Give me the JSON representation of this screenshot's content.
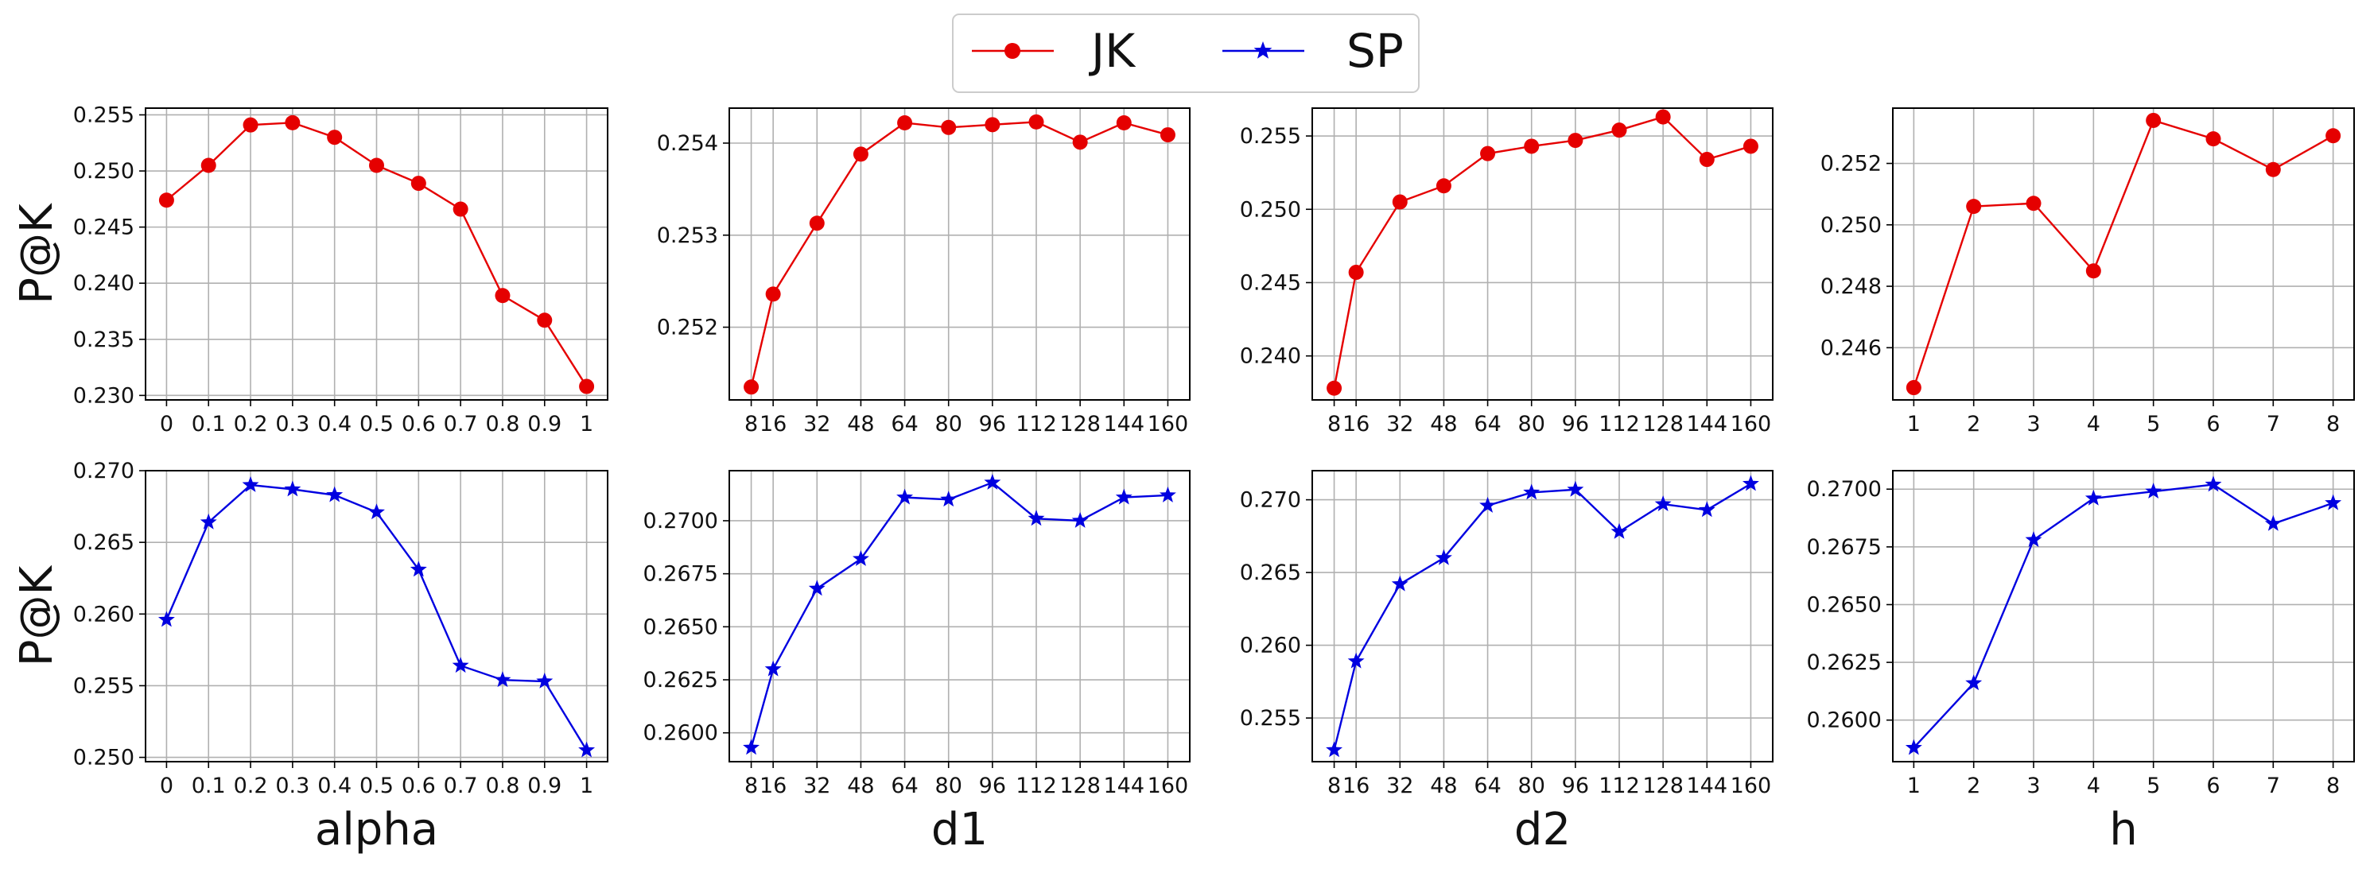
{
  "legend": {
    "entries": [
      {
        "label": "JK",
        "color": "#e50000",
        "marker": "circle"
      },
      {
        "label": "SP",
        "color": "#0000e0",
        "marker": "star"
      }
    ]
  },
  "chart_data": [
    {
      "id": "alpha-jk",
      "type": "line",
      "series_name": "JK",
      "color": "#e50000",
      "marker": "circle",
      "x_tick_labels": [
        "0",
        "0.1",
        "0.2",
        "0.3",
        "0.4",
        "0.5",
        "0.6",
        "0.7",
        "0.8",
        "0.9",
        "1"
      ],
      "x": [
        0,
        0.1,
        0.2,
        0.3,
        0.4,
        0.5,
        0.6,
        0.7,
        0.8,
        0.9,
        1
      ],
      "values": [
        0.2474,
        0.2505,
        0.2541,
        0.2543,
        0.253,
        0.2505,
        0.2489,
        0.2466,
        0.2389,
        0.2367,
        0.2308
      ],
      "xlim": [
        -0.05,
        1.05
      ],
      "ylim": [
        0.2296,
        0.2556
      ],
      "y_ticks": [
        0.23,
        0.235,
        0.24,
        0.245,
        0.25,
        0.255
      ],
      "y_tick_labels": [
        "0.230",
        "0.235",
        "0.240",
        "0.245",
        "0.250",
        "0.255"
      ],
      "ylabel": "P@K",
      "xlabel": "",
      "grid": true
    },
    {
      "id": "d1-jk",
      "type": "line",
      "series_name": "JK",
      "color": "#e50000",
      "marker": "circle",
      "x_tick_labels": [
        "8",
        "16",
        "32",
        "48",
        "64",
        "80",
        "96",
        "112",
        "128",
        "144",
        "160"
      ],
      "x": [
        8,
        16,
        32,
        48,
        64,
        80,
        96,
        112,
        128,
        144,
        160
      ],
      "values": [
        0.25135,
        0.25236,
        0.25313,
        0.25388,
        0.25422,
        0.25417,
        0.2542,
        0.25423,
        0.25401,
        0.25422,
        0.25409
      ],
      "xlim": [
        0,
        168
      ],
      "ylim": [
        0.25121,
        0.25438
      ],
      "y_ticks": [
        0.252,
        0.253,
        0.254
      ],
      "y_tick_labels": [
        "0.252",
        "0.253",
        "0.254"
      ],
      "ylabel": "",
      "xlabel": "",
      "grid": true
    },
    {
      "id": "d2-jk",
      "type": "line",
      "series_name": "JK",
      "color": "#e50000",
      "marker": "circle",
      "x_tick_labels": [
        "8",
        "16",
        "32",
        "48",
        "64",
        "80",
        "96",
        "112",
        "128",
        "144",
        "160"
      ],
      "x": [
        8,
        16,
        32,
        48,
        64,
        80,
        96,
        112,
        128,
        144,
        160
      ],
      "values": [
        0.2378,
        0.2457,
        0.2505,
        0.2516,
        0.2538,
        0.2543,
        0.2547,
        0.2554,
        0.2563,
        0.2534,
        0.2543
      ],
      "xlim": [
        0,
        168
      ],
      "ylim": [
        0.237,
        0.2569
      ],
      "y_ticks": [
        0.24,
        0.245,
        0.25,
        0.255
      ],
      "y_tick_labels": [
        "0.240",
        "0.245",
        "0.250",
        "0.255"
      ],
      "ylabel": "",
      "xlabel": "",
      "grid": true
    },
    {
      "id": "h-jk",
      "type": "line",
      "series_name": "JK",
      "color": "#e50000",
      "marker": "circle",
      "x_tick_labels": [
        "1",
        "2",
        "3",
        "4",
        "5",
        "6",
        "7",
        "8"
      ],
      "x": [
        1,
        2,
        3,
        4,
        5,
        6,
        7,
        8
      ],
      "values": [
        0.2447,
        0.2506,
        0.2507,
        0.2485,
        0.2534,
        0.2528,
        0.2518,
        0.2529
      ],
      "xlim": [
        0.65,
        8.35
      ],
      "ylim": [
        0.2443,
        0.2538
      ],
      "y_ticks": [
        0.246,
        0.248,
        0.25,
        0.252
      ],
      "y_tick_labels": [
        "0.246",
        "0.248",
        "0.250",
        "0.252"
      ],
      "ylabel": "",
      "xlabel": "",
      "grid": true
    },
    {
      "id": "alpha-sp",
      "type": "line",
      "series_name": "SP",
      "color": "#0000e0",
      "marker": "star",
      "x_tick_labels": [
        "0",
        "0.1",
        "0.2",
        "0.3",
        "0.4",
        "0.5",
        "0.6",
        "0.7",
        "0.8",
        "0.9",
        "1"
      ],
      "x": [
        0,
        0.1,
        0.2,
        0.3,
        0.4,
        0.5,
        0.6,
        0.7,
        0.8,
        0.9,
        1
      ],
      "values": [
        0.2596,
        0.2664,
        0.269,
        0.2687,
        0.2683,
        0.2671,
        0.2631,
        0.2564,
        0.2554,
        0.2553,
        0.2505
      ],
      "xlim": [
        -0.05,
        1.05
      ],
      "ylim": [
        0.2497,
        0.27
      ],
      "y_ticks": [
        0.25,
        0.255,
        0.26,
        0.265,
        0.27
      ],
      "y_tick_labels": [
        "0.250",
        "0.255",
        "0.260",
        "0.265",
        "0.270"
      ],
      "ylabel": "P@K",
      "xlabel": "alpha",
      "grid": true
    },
    {
      "id": "d1-sp",
      "type": "line",
      "series_name": "SP",
      "color": "#0000e0",
      "marker": "star",
      "x_tick_labels": [
        "8",
        "16",
        "32",
        "48",
        "64",
        "80",
        "96",
        "112",
        "128",
        "144",
        "160"
      ],
      "x": [
        8,
        16,
        32,
        48,
        64,
        80,
        96,
        112,
        128,
        144,
        160
      ],
      "values": [
        0.2593,
        0.263,
        0.2668,
        0.2682,
        0.2711,
        0.271,
        0.2718,
        0.2701,
        0.27,
        0.2711,
        0.2712
      ],
      "xlim": [
        0,
        168
      ],
      "ylim": [
        0.25864,
        0.27236
      ],
      "y_ticks": [
        0.26,
        0.2625,
        0.265,
        0.2675,
        0.27
      ],
      "y_tick_labels": [
        "0.2600",
        "0.2625",
        "0.2650",
        "0.2675",
        "0.2700"
      ],
      "ylabel": "",
      "xlabel": "d1",
      "grid": true
    },
    {
      "id": "d2-sp",
      "type": "line",
      "series_name": "SP",
      "color": "#0000e0",
      "marker": "star",
      "x_tick_labels": [
        "8",
        "16",
        "32",
        "48",
        "64",
        "80",
        "96",
        "112",
        "128",
        "144",
        "160"
      ],
      "x": [
        8,
        16,
        32,
        48,
        64,
        80,
        96,
        112,
        128,
        144,
        160
      ],
      "values": [
        0.2528,
        0.2589,
        0.2642,
        0.266,
        0.2696,
        0.2705,
        0.2707,
        0.2678,
        0.2697,
        0.2693,
        0.2711
      ],
      "xlim": [
        0,
        168
      ],
      "ylim": [
        0.252,
        0.272
      ],
      "y_ticks": [
        0.255,
        0.26,
        0.265,
        0.27
      ],
      "y_tick_labels": [
        "0.255",
        "0.260",
        "0.265",
        "0.270"
      ],
      "ylabel": "",
      "xlabel": "d2",
      "grid": true
    },
    {
      "id": "h-sp",
      "type": "line",
      "series_name": "SP",
      "color": "#0000e0",
      "marker": "star",
      "x_tick_labels": [
        "1",
        "2",
        "3",
        "4",
        "5",
        "6",
        "7",
        "8"
      ],
      "x": [
        1,
        2,
        3,
        4,
        5,
        6,
        7,
        8
      ],
      "values": [
        0.2588,
        0.2616,
        0.2678,
        0.2696,
        0.2699,
        0.2702,
        0.2685,
        0.2694
      ],
      "xlim": [
        0.65,
        8.35
      ],
      "ylim": [
        0.2582,
        0.2708
      ],
      "y_ticks": [
        0.26,
        0.2625,
        0.265,
        0.2675,
        0.27
      ],
      "y_tick_labels": [
        "0.2600",
        "0.2625",
        "0.2650",
        "0.2675",
        "0.2700"
      ],
      "ylabel": "",
      "xlabel": "h",
      "grid": true
    }
  ]
}
